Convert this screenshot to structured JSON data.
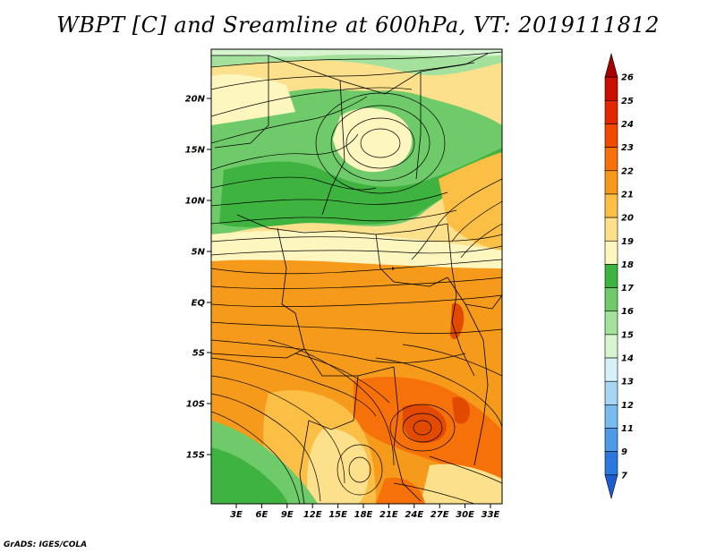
{
  "title": "WBPT [C] and Sreamline at 600hPa, VT: 2019111812",
  "credit": "GrADS: IGES/COLA",
  "map": {
    "lat_labels": [
      "20N",
      "15N",
      "10N",
      "5N",
      "EQ",
      "5S",
      "10S",
      "15S"
    ],
    "lon_labels": [
      "3E",
      "6E",
      "9E",
      "12E",
      "15E",
      "18E",
      "21E",
      "24E",
      "27E",
      "30E",
      "33E"
    ]
  },
  "colorbar": {
    "labels": [
      "26",
      "25",
      "24",
      "23",
      "22",
      "21",
      "20",
      "19",
      "18",
      "17",
      "16",
      "15",
      "14",
      "13",
      "12",
      "11",
      "9",
      "7"
    ],
    "colors": [
      "#a50000",
      "#c80f00",
      "#e22800",
      "#f24a00",
      "#f7710a",
      "#f59a1a",
      "#fbbf46",
      "#fde08b",
      "#fdf6be",
      "#3fb33f",
      "#6fcb6a",
      "#a4e19c",
      "#d6f4d0",
      "#d8f0f8",
      "#a7d6f2",
      "#78bbee",
      "#4f9ae8",
      "#2d78dd",
      "#1c5cd4"
    ]
  },
  "colors": {
    "green_dark": "#3fb33f",
    "green_mid": "#6fcb6a",
    "green_light": "#a4e19c",
    "yellow_pale": "#fdf6be",
    "yellow": "#fde08b",
    "orange_light": "#fbbf46",
    "orange": "#f59a1a",
    "orange_dark": "#f7710a",
    "red_orange": "#e24a00"
  }
}
